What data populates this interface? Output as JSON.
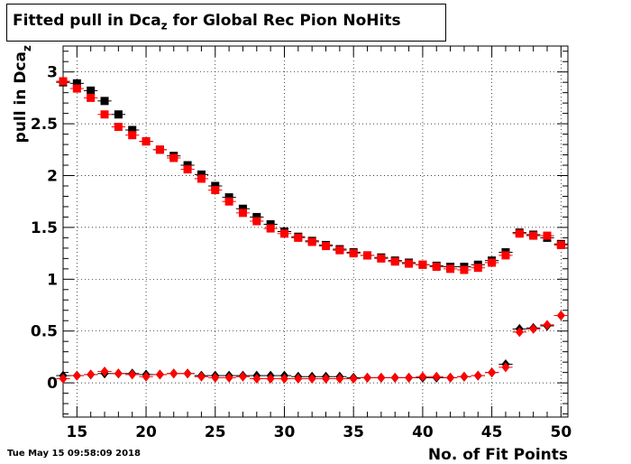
{
  "title": {
    "main": "Fitted pull in Dca",
    "subscript": "z",
    "suffix": " for Global Rec Pion NoHits"
  },
  "timestamp": "Tue May 15 09:58:09 2018",
  "chart_data": {
    "type": "scatter",
    "title": "Fitted pull in Dca_z for Global Rec Pion NoHits",
    "xlabel": "No. of Fit Points",
    "ylabel": "pull in Dca_z",
    "xlim": [
      14,
      50.5
    ],
    "ylim": [
      -0.33,
      3.25
    ],
    "x_ticks": [
      15,
      20,
      25,
      30,
      35,
      40,
      45,
      50
    ],
    "y_ticks": [
      0,
      0.5,
      1,
      1.5,
      2,
      2.5,
      3
    ],
    "x_tick_labels": [
      "15",
      "20",
      "25",
      "30",
      "35",
      "40",
      "45",
      "50"
    ],
    "y_tick_labels": [
      "0",
      "0.5",
      "1",
      "1.5",
      "2",
      "2.5",
      "3"
    ],
    "grid": true,
    "x": [
      14,
      15,
      16,
      17,
      18,
      19,
      20,
      21,
      22,
      23,
      24,
      25,
      26,
      27,
      28,
      29,
      30,
      31,
      32,
      33,
      34,
      35,
      36,
      37,
      38,
      39,
      40,
      41,
      42,
      43,
      44,
      45,
      46,
      47,
      48,
      49,
      50
    ],
    "series": [
      {
        "marker": "square",
        "color": "#000000",
        "values": [
          2.9,
          2.89,
          2.82,
          2.72,
          2.59,
          2.44,
          2.33,
          2.25,
          2.19,
          2.1,
          2.01,
          1.9,
          1.79,
          1.68,
          1.6,
          1.53,
          1.46,
          1.41,
          1.37,
          1.33,
          1.29,
          1.26,
          1.23,
          1.21,
          1.18,
          1.16,
          1.14,
          1.13,
          1.12,
          1.12,
          1.14,
          1.18,
          1.26,
          1.45,
          1.43,
          1.4,
          1.34
        ]
      },
      {
        "marker": "square",
        "color": "#ff0000",
        "values": [
          2.91,
          2.84,
          2.75,
          2.59,
          2.47,
          2.39,
          2.33,
          2.25,
          2.17,
          2.06,
          1.97,
          1.86,
          1.75,
          1.64,
          1.56,
          1.49,
          1.44,
          1.4,
          1.36,
          1.32,
          1.28,
          1.25,
          1.23,
          1.2,
          1.17,
          1.15,
          1.14,
          1.12,
          1.1,
          1.09,
          1.11,
          1.16,
          1.23,
          1.44,
          1.42,
          1.42,
          1.33
        ]
      },
      {
        "marker": "diamond",
        "color": "#000000",
        "values": [
          0.07,
          0.07,
          0.08,
          0.09,
          0.09,
          0.09,
          0.08,
          0.08,
          0.09,
          0.09,
          0.07,
          0.07,
          0.07,
          0.07,
          0.07,
          0.07,
          0.07,
          0.06,
          0.06,
          0.06,
          0.06,
          0.05,
          0.05,
          0.05,
          0.05,
          0.05,
          0.05,
          0.05,
          0.05,
          0.06,
          0.07,
          0.1,
          0.18,
          0.52,
          0.53,
          0.55,
          0.65
        ]
      },
      {
        "marker": "diamond",
        "color": "#ff0000",
        "values": [
          0.04,
          0.07,
          0.08,
          0.11,
          0.09,
          0.08,
          0.06,
          0.08,
          0.09,
          0.09,
          0.06,
          0.05,
          0.05,
          0.06,
          0.04,
          0.04,
          0.04,
          0.04,
          0.04,
          0.04,
          0.04,
          0.04,
          0.05,
          0.05,
          0.05,
          0.05,
          0.06,
          0.06,
          0.05,
          0.06,
          0.07,
          0.1,
          0.15,
          0.49,
          0.52,
          0.56,
          0.65
        ]
      }
    ]
  }
}
